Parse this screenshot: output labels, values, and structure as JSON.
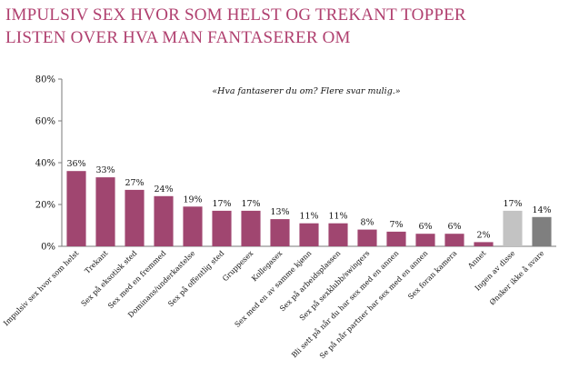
{
  "title_lines": [
    "IMPULSIV SEX HVOR SOM HELST OG TREKANT TOPPER",
    "LISTEN OVER HVA MAN FANTASERER OM"
  ],
  "chart_data": {
    "type": "bar",
    "annotation": "«Hva fantaserer du om? Flere svar mulig.»",
    "categories": [
      "Impulsiv sex hvor som helst",
      "Trekant",
      "Sex på eksotisk sted",
      "Sex med en fremmed",
      "Dominans/underkastelse",
      "Sex på offentlig sted",
      "Gruppesex",
      "Kollegasex",
      "Sex med en av samme kjønn",
      "Sex på arbeidsplassen",
      "Sex på sexklubb/swingers",
      "Bli sett på når du har sex med en annen",
      "Se på når partner har sex med en annen",
      "Sex foran kamera",
      "Annet",
      "Ingen av disse",
      "Ønsker ikke å svare"
    ],
    "values": [
      36,
      33,
      27,
      24,
      19,
      17,
      17,
      13,
      11,
      11,
      8,
      7,
      6,
      6,
      2,
      17,
      14
    ],
    "value_labels": [
      "36%",
      "33%",
      "27%",
      "24%",
      "19%",
      "17%",
      "17%",
      "13%",
      "11%",
      "11%",
      "8%",
      "7%",
      "6%",
      "6%",
      "2%",
      "17%",
      "14%"
    ],
    "bar_colors": [
      "#a04670",
      "#a04670",
      "#a04670",
      "#a04670",
      "#a04670",
      "#a04670",
      "#a04670",
      "#a04670",
      "#a04670",
      "#a04670",
      "#a04670",
      "#a04670",
      "#a04670",
      "#a04670",
      "#a04670",
      "#c3c3c3",
      "#7f7f7f"
    ],
    "ytick_labels": [
      "0%",
      "20%",
      "40%",
      "60%",
      "80%"
    ],
    "yticks": [
      0,
      20,
      40,
      60,
      80
    ],
    "ylim": [
      0,
      80
    ],
    "grid": false
  }
}
